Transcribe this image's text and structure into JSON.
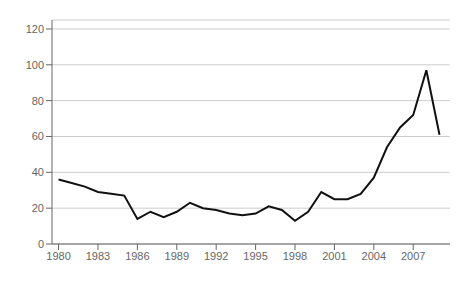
{
  "chart_data": {
    "type": "line",
    "x": [
      1980,
      1981,
      1982,
      1983,
      1984,
      1985,
      1986,
      1987,
      1988,
      1989,
      1990,
      1991,
      1992,
      1993,
      1994,
      1995,
      1996,
      1997,
      1998,
      1999,
      2000,
      2001,
      2002,
      2003,
      2004,
      2005,
      2006,
      2007,
      2008,
      2009
    ],
    "values": [
      36,
      34,
      32,
      29,
      28,
      27,
      14,
      18,
      15,
      18,
      23,
      20,
      19,
      17,
      16,
      17,
      21,
      19,
      13,
      18,
      29,
      25,
      25,
      28,
      37,
      54,
      65,
      72,
      97,
      61
    ],
    "color": "#111111",
    "xlim": [
      1979.5,
      2009.8
    ],
    "ylim": [
      0,
      125
    ],
    "xticks": [
      1980,
      1983,
      1986,
      1989,
      1992,
      1995,
      1998,
      2001,
      2004,
      2007
    ],
    "yticks": [
      0,
      20,
      40,
      60,
      80,
      100,
      120
    ],
    "grid": true
  }
}
